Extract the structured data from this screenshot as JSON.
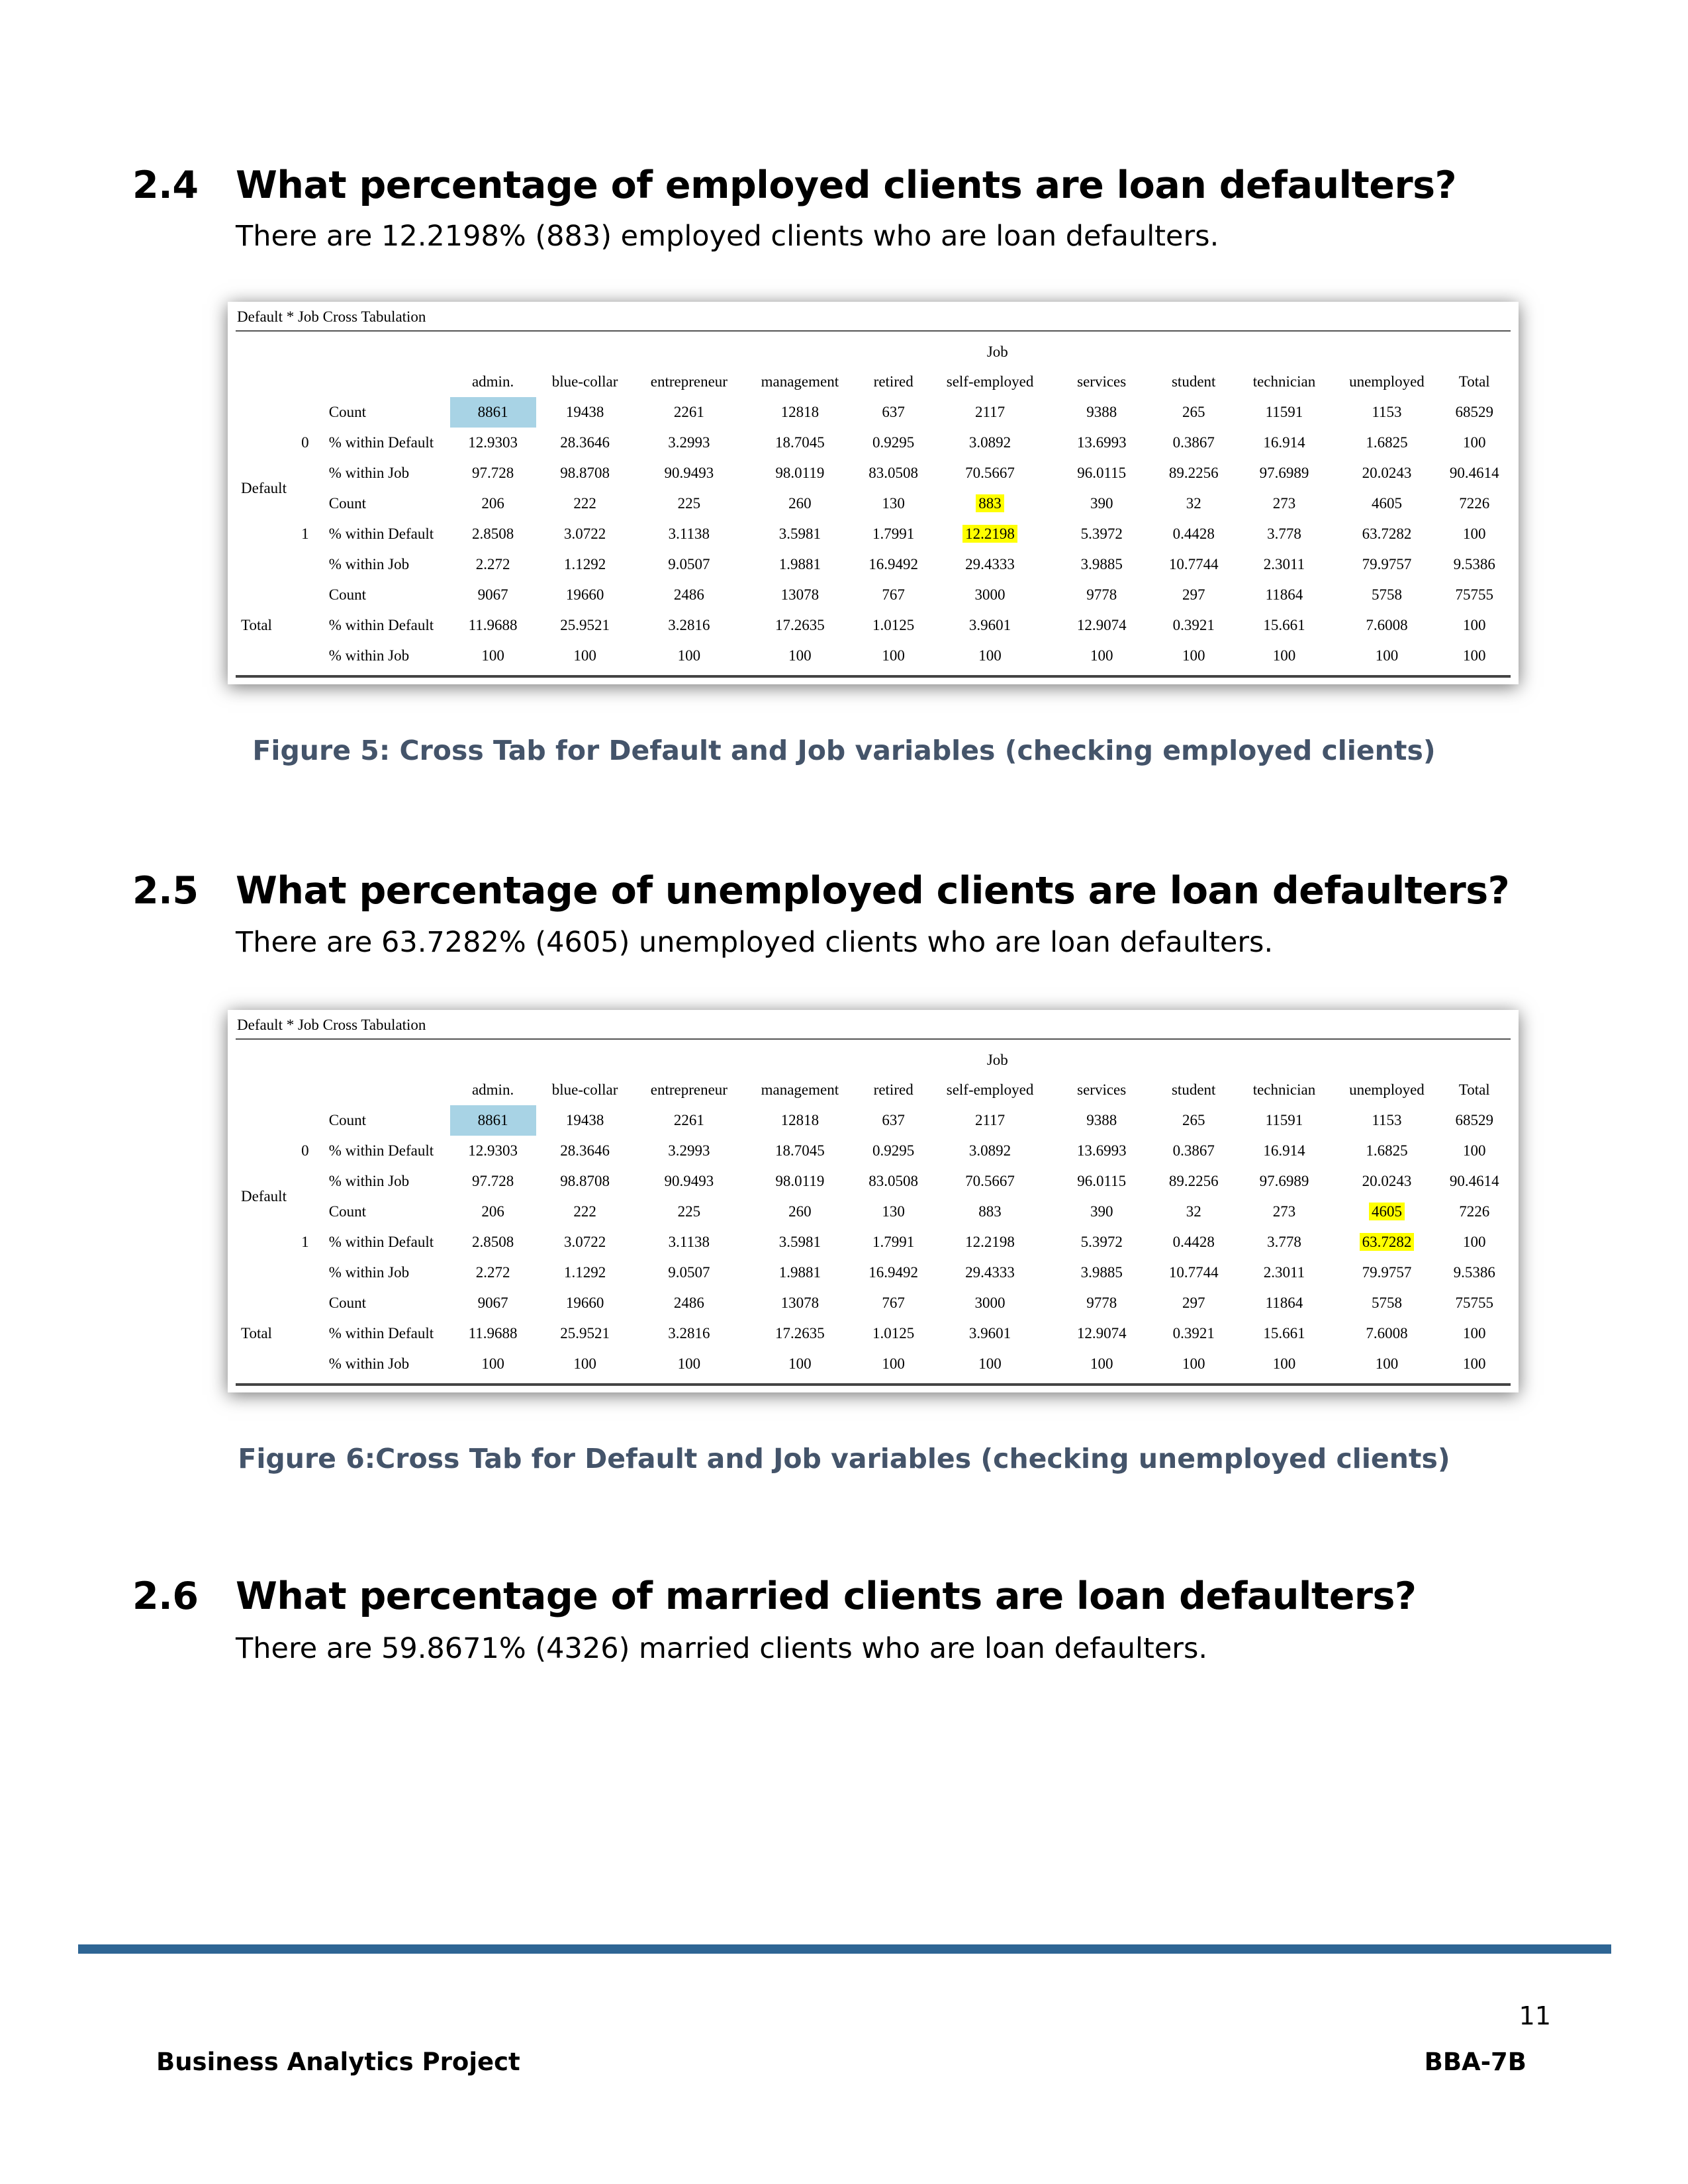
{
  "sections": [
    {
      "number": "2.4",
      "question": "What percentage of employed clients are loan defaulters?",
      "answer": "There are 12.2198% (883) employed clients who are loan defaulters.",
      "caption": "Figure 5: Cross Tab for Default and Job variables (checking employed clients)"
    },
    {
      "number": "2.5",
      "question": "What percentage of unemployed clients are loan defaulters?",
      "answer": "There are 63.7282% (4605) unemployed clients who are loan defaulters.",
      "caption": "Figure 6:Cross Tab for Default and Job variables (checking unemployed clients)"
    },
    {
      "number": "2.6",
      "question": "What percentage of married clients are loan defaulters?",
      "answer": "There are 59.8671% (4326) married clients who are loan defaulters."
    }
  ],
  "crosstab": {
    "title": "Default * Job Cross Tabulation",
    "column_group": "Job",
    "columns": [
      "admin.",
      "blue-collar",
      "entrepreneur",
      "management",
      "retired",
      "self-employed",
      "services",
      "student",
      "technician",
      "unemployed",
      "Total"
    ],
    "row_group": "Default",
    "total_label": "Total",
    "levels": [
      "0",
      "1"
    ],
    "stats": [
      "Count",
      "% within Default",
      "% within Job"
    ],
    "rows": [
      [
        "8861",
        "19438",
        "2261",
        "12818",
        "637",
        "2117",
        "9388",
        "265",
        "11591",
        "1153",
        "68529"
      ],
      [
        "12.9303",
        "28.3646",
        "3.2993",
        "18.7045",
        "0.9295",
        "3.0892",
        "13.6993",
        "0.3867",
        "16.914",
        "1.6825",
        "100"
      ],
      [
        "97.728",
        "98.8708",
        "90.9493",
        "98.0119",
        "83.0508",
        "70.5667",
        "96.0115",
        "89.2256",
        "97.6989",
        "20.0243",
        "90.4614"
      ],
      [
        "206",
        "222",
        "225",
        "260",
        "130",
        "883",
        "390",
        "32",
        "273",
        "4605",
        "7226"
      ],
      [
        "2.8508",
        "3.0722",
        "3.1138",
        "3.5981",
        "1.7991",
        "12.2198",
        "5.3972",
        "0.4428",
        "3.778",
        "63.7282",
        "100"
      ],
      [
        "2.272",
        "1.1292",
        "9.0507",
        "1.9881",
        "16.9492",
        "29.4333",
        "3.9885",
        "10.7744",
        "2.3011",
        "79.9757",
        "9.5386"
      ],
      [
        "9067",
        "19660",
        "2486",
        "13078",
        "767",
        "3000",
        "9778",
        "297",
        "11864",
        "5758",
        "75755"
      ],
      [
        "11.9688",
        "25.9521",
        "3.2816",
        "17.2635",
        "1.0125",
        "3.9601",
        "12.9074",
        "0.3921",
        "15.661",
        "7.6008",
        "100"
      ],
      [
        "100",
        "100",
        "100",
        "100",
        "100",
        "100",
        "100",
        "100",
        "100",
        "100",
        "100"
      ]
    ]
  },
  "footer": {
    "page_number": "11",
    "left": "Business Analytics Project",
    "right": "BBA-7B",
    "rule_color": "#2e6594"
  }
}
